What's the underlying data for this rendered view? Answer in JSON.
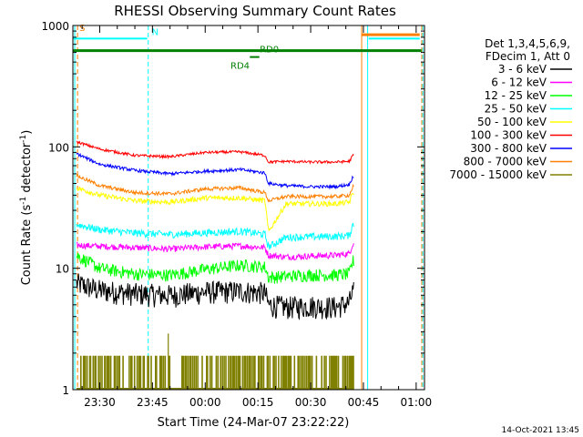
{
  "chart_data": {
    "type": "line",
    "title": "RHESSI Observing Summary Count Rates",
    "xlabel": "Start Time (24-Mar-07 23:22:22)",
    "ylabel_prefix": "Count Rate (s",
    "ylabel_mid": " detector",
    "ylabel_suffix": ")",
    "ylabel_sup": "-1",
    "yscale": "log",
    "ylim": [
      1,
      1000
    ],
    "xlim_minutes_after_2320": [
      2.37,
      102.37
    ],
    "y_ticks": [
      {
        "value": 1,
        "label": "1"
      },
      {
        "value": 10,
        "label": "10"
      },
      {
        "value": 100,
        "label": "100"
      },
      {
        "value": 1000,
        "label": "1000"
      }
    ],
    "x_ticks": [
      {
        "minutes": 10,
        "label": "23:30"
      },
      {
        "minutes": 25,
        "label": "23:45"
      },
      {
        "minutes": 40,
        "label": "00:00"
      },
      {
        "minutes": 55,
        "label": "00:15"
      },
      {
        "minutes": 70,
        "label": "00:30"
      },
      {
        "minutes": 85,
        "label": "00:45"
      },
      {
        "minutes": 100,
        "label": "01:00"
      }
    ],
    "legend_header": [
      "Det 1,3,4,5,6,9,",
      "FDecim 1, Att 0"
    ],
    "legend_position": "right",
    "series": [
      {
        "name": "3 - 6 keV",
        "color": "#000000",
        "values": [
          [
            3.4,
            7.5
          ],
          [
            10,
            6.6
          ],
          [
            20,
            6.2
          ],
          [
            30,
            6.0
          ],
          [
            40,
            6.4
          ],
          [
            50,
            6.5
          ],
          [
            57,
            6.3
          ],
          [
            58,
            5.0
          ],
          [
            63,
            4.8
          ],
          [
            70,
            4.9
          ],
          [
            77,
            4.8
          ],
          [
            81,
            5.2
          ],
          [
            82,
            6.5
          ],
          [
            82.3,
            null
          ]
        ]
      },
      {
        "name": "6 - 12 keV",
        "color": "#ff00ff",
        "values": [
          [
            3.4,
            15.5
          ],
          [
            10,
            15.2
          ],
          [
            20,
            14.8
          ],
          [
            30,
            14.4
          ],
          [
            40,
            15.0
          ],
          [
            50,
            15.3
          ],
          [
            57,
            14.8
          ],
          [
            58,
            12.8
          ],
          [
            63,
            12.4
          ],
          [
            70,
            12.6
          ],
          [
            77,
            12.8
          ],
          [
            81,
            13.2
          ],
          [
            82,
            16.0
          ],
          [
            82.3,
            null
          ]
        ]
      },
      {
        "name": "12 - 25 keV",
        "color": "#00ff00",
        "values": [
          [
            3.4,
            12.8
          ],
          [
            10,
            10.0
          ],
          [
            20,
            9.0
          ],
          [
            30,
            8.8
          ],
          [
            40,
            9.8
          ],
          [
            50,
            10.6
          ],
          [
            57,
            10.3
          ],
          [
            58,
            8.4
          ],
          [
            63,
            8.6
          ],
          [
            70,
            8.8
          ],
          [
            77,
            8.8
          ],
          [
            81,
            9.0
          ],
          [
            82,
            11.5
          ],
          [
            82.3,
            null
          ]
        ]
      },
      {
        "name": "25 - 50 keV",
        "color": "#00ffff",
        "values": [
          [
            3.4,
            23.0
          ],
          [
            10,
            20.8
          ],
          [
            20,
            19.5
          ],
          [
            30,
            19.0
          ],
          [
            40,
            19.6
          ],
          [
            50,
            20.2
          ],
          [
            57,
            19.0
          ],
          [
            58,
            15.0
          ],
          [
            63,
            18.0
          ],
          [
            70,
            18.2
          ],
          [
            77,
            18.3
          ],
          [
            81,
            18.6
          ],
          [
            82,
            23.0
          ],
          [
            82.3,
            null
          ]
        ]
      },
      {
        "name": "50 - 100 keV",
        "color": "#ffff00",
        "values": [
          [
            3.4,
            46
          ],
          [
            10,
            40
          ],
          [
            20,
            36
          ],
          [
            30,
            35
          ],
          [
            40,
            38
          ],
          [
            50,
            38
          ],
          [
            57,
            36
          ],
          [
            58,
            20
          ],
          [
            63,
            34
          ],
          [
            70,
            34
          ],
          [
            77,
            34
          ],
          [
            81,
            35
          ],
          [
            82,
            42
          ],
          [
            82.3,
            null
          ]
        ]
      },
      {
        "name": "100 - 300 keV",
        "color": "#ff0000",
        "values": [
          [
            3.4,
            110
          ],
          [
            10,
            96
          ],
          [
            20,
            85
          ],
          [
            30,
            83
          ],
          [
            40,
            90
          ],
          [
            50,
            91
          ],
          [
            57,
            85
          ],
          [
            58,
            75
          ],
          [
            63,
            76
          ],
          [
            70,
            75
          ],
          [
            77,
            75
          ],
          [
            81,
            76
          ],
          [
            82,
            85
          ],
          [
            82.3,
            null
          ]
        ]
      },
      {
        "name": "300 - 800 keV",
        "color": "#0000ff",
        "values": [
          [
            3.4,
            88
          ],
          [
            10,
            72
          ],
          [
            20,
            64
          ],
          [
            30,
            60
          ],
          [
            40,
            63
          ],
          [
            50,
            65
          ],
          [
            57,
            61
          ],
          [
            58,
            50
          ],
          [
            63,
            48
          ],
          [
            70,
            47
          ],
          [
            77,
            47
          ],
          [
            81,
            49
          ],
          [
            82,
            57
          ],
          [
            82.3,
            null
          ]
        ]
      },
      {
        "name": "800 - 7000 keV",
        "color": "#ff8000",
        "values": [
          [
            3.4,
            58
          ],
          [
            10,
            48
          ],
          [
            20,
            42
          ],
          [
            30,
            41
          ],
          [
            40,
            45
          ],
          [
            50,
            46
          ],
          [
            57,
            42
          ],
          [
            58,
            36
          ],
          [
            63,
            39
          ],
          [
            70,
            39
          ],
          [
            77,
            39
          ],
          [
            81,
            40
          ],
          [
            82,
            47
          ],
          [
            82.3,
            null
          ]
        ]
      },
      {
        "name": "7000 - 15000 keV",
        "color": "#808000",
        "values": [
          [
            3.4,
            1.9
          ],
          [
            82.3,
            1.9
          ]
        ]
      }
    ],
    "flag_lines": [
      {
        "label": "S",
        "color": "#ff8000",
        "level": 840
      },
      {
        "label": "N",
        "color": "#00ffff",
        "level": 780
      },
      {
        "label": "RD0",
        "color": "#008000",
        "level": 620
      },
      {
        "label": "RD4",
        "color": "#008000",
        "level": 550
      }
    ],
    "vertical_markers": [
      {
        "minutes": 2.9,
        "color": "#00ffff",
        "style": "solid"
      },
      {
        "minutes": 3.7,
        "color": "#ff8000",
        "style": "dashed"
      },
      {
        "minutes": 23.8,
        "color": "#00ffff",
        "style": "dashed"
      },
      {
        "minutes": 84.5,
        "color": "#ff8000",
        "style": "solid"
      },
      {
        "minutes": 86.2,
        "color": "#00ffff",
        "style": "solid"
      },
      {
        "minutes": 101.6,
        "color": "#ff8000",
        "style": "dashed"
      },
      {
        "minutes": 101.9,
        "color": "#00ffff",
        "style": "dashed"
      }
    ],
    "timestamp": "14-Oct-2021 13:45"
  }
}
